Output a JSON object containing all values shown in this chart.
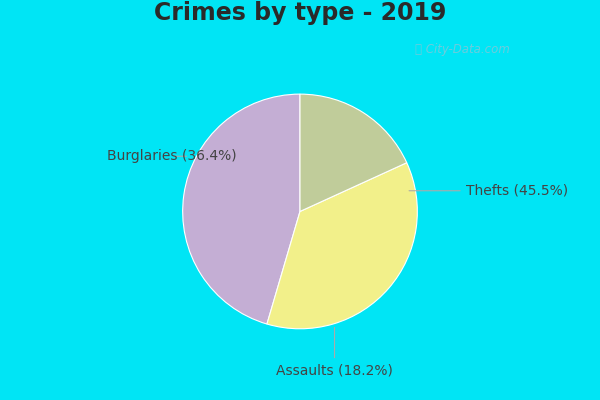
{
  "title": "Crimes by type - 2019",
  "slices": [
    {
      "label": "Thefts (45.5%)",
      "value": 45.5,
      "color": "#c4aed4"
    },
    {
      "label": "Burglaries (36.4%)",
      "value": 36.4,
      "color": "#f2f08a"
    },
    {
      "label": "Assaults (18.2%)",
      "value": 18.2,
      "color": "#c0cc9a"
    }
  ],
  "bg_color_outer": "#00e5f5",
  "bg_color_inner": "#d8ede4",
  "watermark": "ⓘ City-Data.com",
  "title_fontsize": 17,
  "label_fontsize": 10,
  "startangle": 90,
  "title_color": "#2a2a2a",
  "label_color": "#444444",
  "line_color": "#aaaaaa"
}
